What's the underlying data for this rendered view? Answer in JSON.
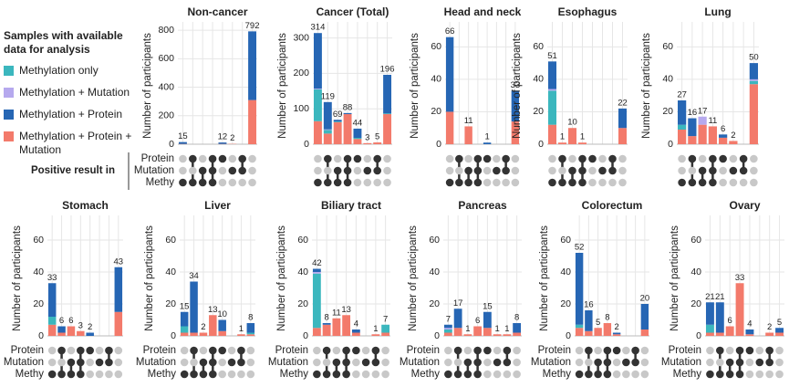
{
  "legend": {
    "title": "Samples with available data for analysis",
    "items": [
      {
        "name": "Methylation only",
        "color": "#3bb7be"
      },
      {
        "name": "Methylation + Mutation",
        "color": "#b6a9ee"
      },
      {
        "name": "Methylation + Protein",
        "color": "#2666b4"
      },
      {
        "name": "Methylation + Protein + Mutation",
        "color": "#f37a6b"
      }
    ]
  },
  "ylabel": "Number of participants",
  "matrix": {
    "title": "Positive result in",
    "rows": [
      {
        "label": "Protein",
        "active": [
          false,
          true,
          false,
          true,
          true,
          false,
          true,
          false
        ]
      },
      {
        "label": "Mutation",
        "active": [
          false,
          false,
          true,
          true,
          false,
          true,
          true,
          false
        ]
      },
      {
        "label": "Methy",
        "active": [
          true,
          true,
          true,
          true,
          false,
          false,
          false,
          false
        ]
      }
    ],
    "active_color": "#333333",
    "inactive_color": "#c8c8c8"
  },
  "chart_data": [
    {
      "type": "stacked_bar",
      "title": "Non-cancer",
      "ylim": [
        0,
        820
      ],
      "yticks": [
        0,
        200,
        400,
        600,
        800
      ],
      "series": [
        {
          "values": [
            0,
            0,
            0,
            0,
            0,
            0,
            0,
            0
          ]
        },
        {
          "values": [
            0,
            0,
            0,
            0,
            0,
            0,
            0,
            0
          ]
        },
        {
          "values": [
            13,
            0,
            0,
            0,
            10,
            0,
            0,
            482
          ]
        },
        {
          "values": [
            2,
            0,
            0,
            0,
            2,
            2,
            0,
            310
          ]
        }
      ],
      "totals": [
        15,
        null,
        null,
        null,
        12,
        2,
        null,
        792
      ]
    },
    {
      "type": "stacked_bar",
      "title": "Cancer (Total)",
      "ylim": [
        0,
        330
      ],
      "yticks": [
        0,
        100,
        200,
        300
      ],
      "series": [
        {
          "values": [
            90,
            10,
            2,
            0,
            3,
            0,
            0,
            2
          ]
        },
        {
          "values": [
            2,
            2,
            0,
            0,
            0,
            0,
            0,
            0
          ]
        },
        {
          "values": [
            157,
            77,
            5,
            3,
            26,
            0,
            0,
            109
          ]
        },
        {
          "values": [
            65,
            30,
            62,
            85,
            15,
            3,
            5,
            85
          ]
        }
      ],
      "totals": [
        314,
        119,
        69,
        88,
        44,
        3,
        5,
        196
      ]
    },
    {
      "type": "stacked_bar",
      "title": "Head and neck",
      "ylim": [
        0,
        72
      ],
      "yticks": [
        0,
        20,
        40,
        60
      ],
      "series": [
        {
          "values": [
            0,
            0,
            0,
            0,
            0,
            0,
            0,
            0
          ]
        },
        {
          "values": [
            0,
            0,
            0,
            0,
            0,
            0,
            0,
            0
          ]
        },
        {
          "values": [
            46,
            0,
            0,
            0,
            1,
            0,
            0,
            19
          ]
        },
        {
          "values": [
            20,
            0,
            11,
            0,
            0,
            0,
            0,
            14
          ]
        }
      ],
      "totals": [
        66,
        null,
        11,
        null,
        1,
        null,
        null,
        33
      ]
    },
    {
      "type": "stacked_bar",
      "title": "Esophagus",
      "ylim": [
        0,
        72
      ],
      "yticks": [
        0,
        20,
        40,
        60
      ],
      "series": [
        {
          "values": [
            21,
            0,
            0,
            0,
            0,
            0,
            0,
            0
          ]
        },
        {
          "values": [
            1,
            0,
            0,
            0,
            0,
            0,
            0,
            0
          ]
        },
        {
          "values": [
            17,
            0,
            0,
            0,
            0,
            0,
            0,
            12
          ]
        },
        {
          "values": [
            12,
            1,
            10,
            1,
            0,
            0,
            0,
            10
          ]
        }
      ],
      "totals": [
        51,
        1,
        10,
        1,
        null,
        null,
        null,
        22
      ]
    },
    {
      "type": "stacked_bar",
      "title": "Lung",
      "ylim": [
        0,
        72
      ],
      "yticks": [
        0,
        20,
        40,
        60
      ],
      "series": [
        {
          "values": [
            3,
            0,
            0,
            0,
            0,
            0,
            0,
            2
          ]
        },
        {
          "values": [
            0,
            0,
            5,
            0,
            0,
            0,
            0,
            1
          ]
        },
        {
          "values": [
            15,
            11,
            0,
            0,
            2,
            0,
            0,
            10
          ]
        },
        {
          "values": [
            9,
            5,
            12,
            11,
            4,
            2,
            0,
            37
          ]
        }
      ],
      "totals": [
        27,
        16,
        17,
        11,
        6,
        2,
        null,
        50
      ]
    },
    {
      "type": "stacked_bar",
      "title": "Stomach",
      "ylim": [
        0,
        72
      ],
      "yticks": [
        0,
        20,
        40,
        60
      ],
      "series": [
        {
          "values": [
            5,
            0,
            0,
            0,
            0,
            0,
            0,
            0
          ]
        },
        {
          "values": [
            0,
            0,
            0,
            0,
            0,
            0,
            0,
            0
          ]
        },
        {
          "values": [
            21,
            4,
            0,
            0,
            2,
            0,
            0,
            28
          ]
        },
        {
          "values": [
            7,
            2,
            6,
            3,
            0,
            0,
            0,
            15
          ]
        }
      ],
      "totals": [
        33,
        6,
        6,
        3,
        2,
        null,
        null,
        43
      ]
    },
    {
      "type": "stacked_bar",
      "title": "Liver",
      "ylim": [
        0,
        72
      ],
      "yticks": [
        0,
        20,
        40,
        60
      ],
      "series": [
        {
          "values": [
            4,
            0,
            0,
            0,
            0,
            0,
            0,
            1
          ]
        },
        {
          "values": [
            0,
            0,
            0,
            0,
            0,
            0,
            0,
            0
          ]
        },
        {
          "values": [
            9,
            32,
            0,
            0,
            7,
            0,
            0,
            6
          ]
        },
        {
          "values": [
            2,
            2,
            2,
            13,
            3,
            0,
            1,
            1
          ]
        }
      ],
      "totals": [
        15,
        34,
        2,
        13,
        10,
        null,
        1,
        8
      ]
    },
    {
      "type": "stacked_bar",
      "title": "Biliary tract",
      "ylim": [
        0,
        72
      ],
      "yticks": [
        0,
        20,
        40,
        60
      ],
      "series": [
        {
          "values": [
            34,
            0,
            0,
            0,
            0,
            0,
            0,
            5
          ]
        },
        {
          "values": [
            1,
            0,
            0,
            0,
            0,
            0,
            0,
            0
          ]
        },
        {
          "values": [
            2,
            1,
            0,
            0,
            2,
            0,
            0,
            0
          ]
        },
        {
          "values": [
            5,
            7,
            11,
            13,
            2,
            0,
            1,
            2
          ]
        }
      ],
      "totals": [
        42,
        8,
        11,
        13,
        4,
        null,
        1,
        7
      ]
    },
    {
      "type": "stacked_bar",
      "title": "Pancreas",
      "ylim": [
        0,
        72
      ],
      "yticks": [
        0,
        20,
        40,
        60
      ],
      "series": [
        {
          "values": [
            2,
            0,
            0,
            0,
            0,
            0,
            0,
            0
          ]
        },
        {
          "values": [
            1,
            0,
            0,
            0,
            0,
            0,
            0,
            0
          ]
        },
        {
          "values": [
            2,
            12,
            0,
            0,
            10,
            0,
            0,
            6
          ]
        },
        {
          "values": [
            2,
            5,
            1,
            6,
            5,
            1,
            1,
            2
          ]
        }
      ],
      "totals": [
        7,
        17,
        1,
        6,
        15,
        1,
        1,
        8
      ]
    },
    {
      "type": "stacked_bar",
      "title": "Colorectum",
      "ylim": [
        0,
        72
      ],
      "yticks": [
        0,
        20,
        40,
        60
      ],
      "series": [
        {
          "values": [
            2,
            0,
            0,
            0,
            0,
            0,
            0,
            0
          ]
        },
        {
          "values": [
            0,
            0,
            0,
            0,
            0,
            0,
            0,
            0
          ]
        },
        {
          "values": [
            45,
            13,
            0,
            0,
            1,
            0,
            0,
            16
          ]
        },
        {
          "values": [
            5,
            3,
            5,
            8,
            1,
            0,
            0,
            4
          ]
        }
      ],
      "totals": [
        52,
        16,
        5,
        8,
        2,
        null,
        null,
        20
      ]
    },
    {
      "type": "stacked_bar",
      "title": "Ovary",
      "ylim": [
        0,
        72
      ],
      "yticks": [
        0,
        20,
        40,
        60
      ],
      "series": [
        {
          "values": [
            5,
            0,
            0,
            0,
            0,
            0,
            0,
            0
          ]
        },
        {
          "values": [
            0,
            0,
            0,
            0,
            0,
            0,
            0,
            0
          ]
        },
        {
          "values": [
            14,
            19,
            0,
            0,
            3,
            0,
            0,
            3
          ]
        },
        {
          "values": [
            2,
            2,
            6,
            33,
            1,
            0,
            2,
            2
          ]
        }
      ],
      "totals": [
        21,
        21,
        6,
        33,
        4,
        null,
        2,
        5
      ]
    }
  ]
}
